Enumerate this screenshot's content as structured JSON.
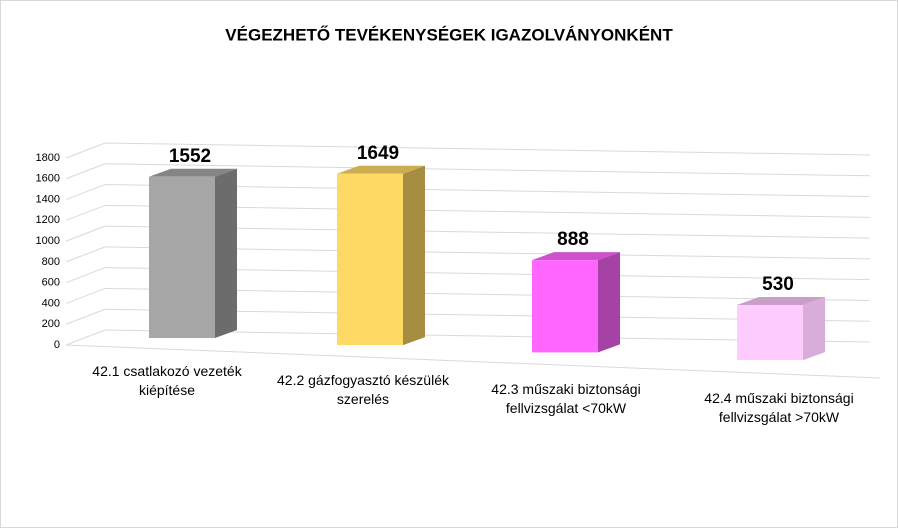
{
  "chart_data": {
    "type": "bar3d",
    "title": "VÉGEZHETŐ TEVÉKENYSÉGEK IGAZOLVÁNYONKÉNT",
    "categories": [
      "42.1 csatlakozó vezeték kiépítése",
      "42.2 gázfogyasztó készülék szerelés",
      "42.3 műszaki biztonsági fellvizsgálat <70kW",
      "42.4 műszaki biztonsági fellvizsgálat >70kW"
    ],
    "values": [
      1552,
      1649,
      888,
      530
    ],
    "colors": [
      "#a6a6a6",
      "#ffd966",
      "#ff66ff",
      "#ffccff"
    ],
    "ylim": [
      0,
      1800
    ],
    "yticks": [
      0,
      200,
      400,
      600,
      800,
      1000,
      1200,
      1400,
      1600,
      1800
    ],
    "grid": true
  }
}
